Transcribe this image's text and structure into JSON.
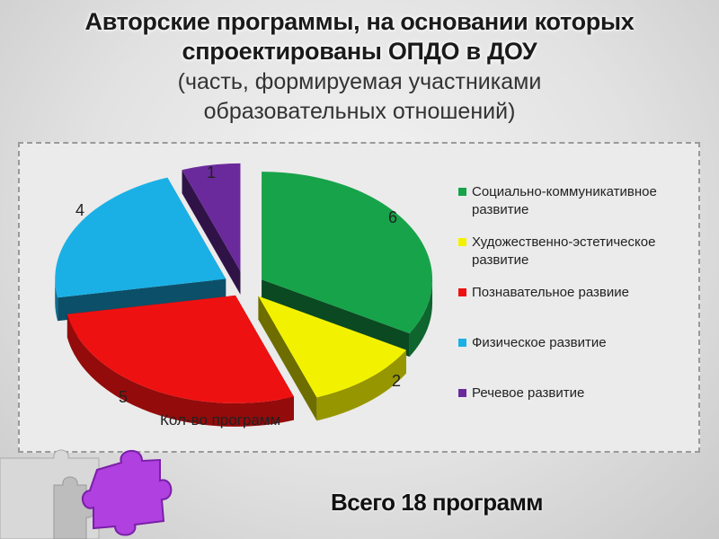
{
  "header": {
    "title_line1": "Авторские программы, на основании которых",
    "title_line2": "спроектированы ОПДО в ДОУ",
    "subtitle_line1": "(часть, формируемая участниками",
    "subtitle_line2": "образовательных отношений)"
  },
  "footer": {
    "total": "Всего 18 программ"
  },
  "chart_data": {
    "type": "pie",
    "style": "3d-exploded",
    "series_name": "Кол-во программ",
    "categories": [
      "Социально-коммуникативное развитие",
      "Художественно-эстетическое развитие",
      "Познавательное развиие",
      "Физическое развитие",
      "Речевое развитие"
    ],
    "values": [
      6,
      2,
      5,
      4,
      1
    ],
    "colors": [
      "#17a34a",
      "#f2f200",
      "#ee1111",
      "#1ab0e6",
      "#6a2a9c"
    ],
    "legend_position": "right"
  }
}
